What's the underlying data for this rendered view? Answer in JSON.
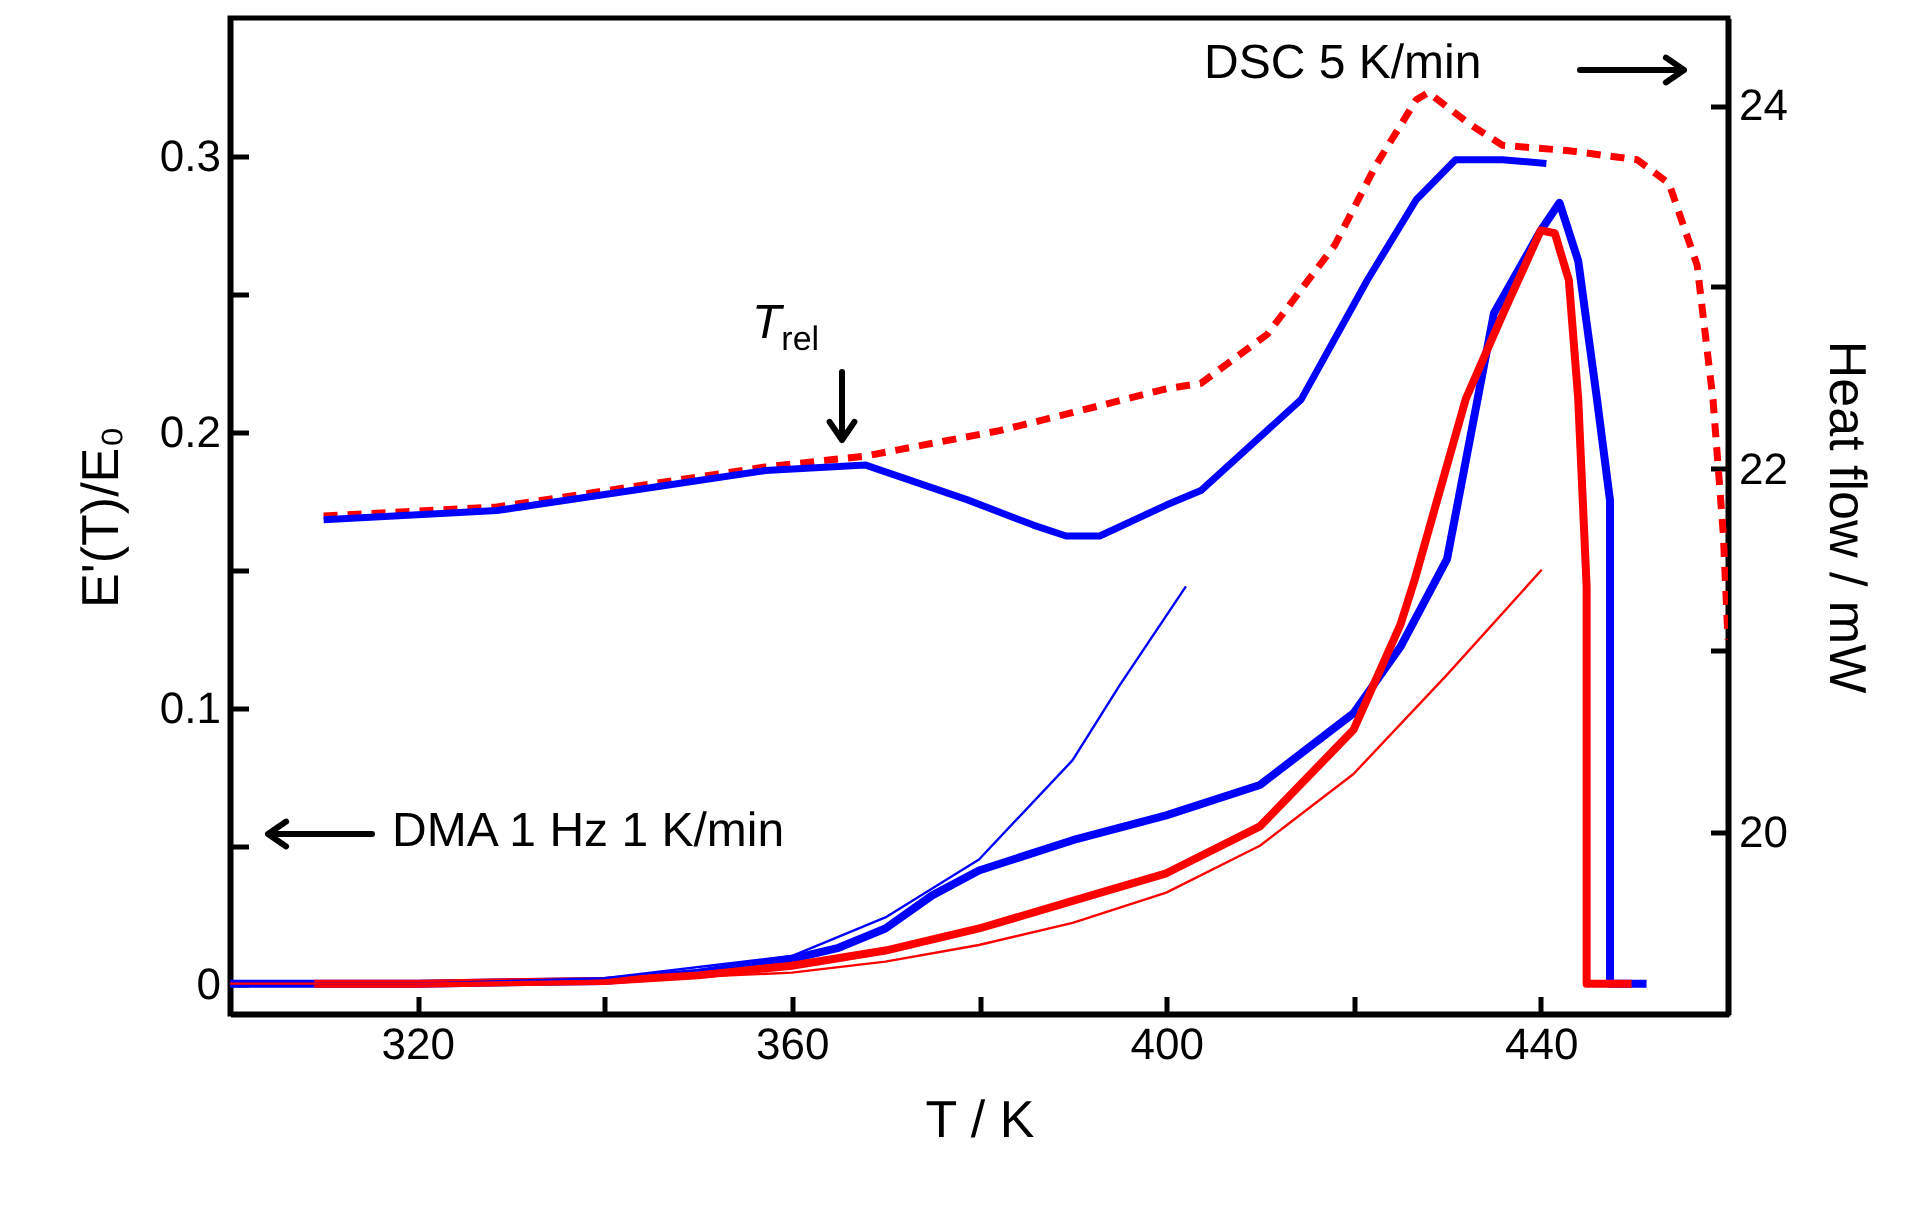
{
  "chart_data": {
    "type": "line",
    "xlabel": "T / K",
    "ylabel": "E'(T)/E₀",
    "y2label": "Heat flow / mW",
    "xlim": [
      300,
      460
    ],
    "xticks": [
      320,
      {
        "value": 340,
        "label": null
      },
      360,
      {
        "value": 380,
        "label": null
      },
      400,
      {
        "value": 420,
        "label": null
      },
      440
    ],
    "ylim": [
      -0.011,
      0.35
    ],
    "yticks": [
      0,
      {
        "value": 0.05,
        "label": null
      },
      0.1,
      {
        "value": 0.15,
        "label": null
      },
      0.2,
      {
        "value": 0.25,
        "label": null
      },
      0.3
    ],
    "y2lim": [
      19,
      24.48
    ],
    "y2ticks": [
      20,
      {
        "value": 21,
        "label": null
      },
      22,
      {
        "value": 23,
        "label": null
      },
      24
    ],
    "grid": false,
    "annotations": [
      "T$_{rel}$",
      "DSC 5 K/min",
      "DMA 1 Hz 1 K/min"
    ],
    "series": [
      {
        "color": "#ff0000",
        "axis": "y2",
        "line_style": "dashed",
        "x": [
          310,
          328.5,
          342.9,
          357.2,
          367.9,
          382.2,
          389.3,
          400,
          403.7,
          410.8,
          418,
          422.4,
          426.7,
          428,
          432.3,
          435.9,
          443,
          450.3,
          453.7,
          456.7,
          458.4,
          459.5,
          460
        ],
        "values": [
          21.74,
          21.79,
          21.9,
          22.01,
          22.07,
          22.21,
          22.3,
          22.44,
          22.47,
          22.74,
          23.23,
          23.67,
          24.03,
          24.07,
          23.9,
          23.78,
          23.75,
          23.7,
          23.57,
          23.12,
          22.38,
          21.64,
          21.06
        ]
      },
      {
        "color": "#0000ff",
        "axis": "y2",
        "x": [
          310,
          328.5,
          342.9,
          357.2,
          367.9,
          378.7,
          385.8,
          389.3,
          392.9,
          400,
          403.7,
          414.4,
          421.5,
          426.7,
          430.9,
          435.9,
          440.6
        ],
        "values": [
          21.72,
          21.77,
          21.88,
          21.99,
          22.02,
          21.83,
          21.69,
          21.63,
          21.63,
          21.8,
          21.88,
          22.38,
          23.04,
          23.48,
          23.7,
          23.7,
          23.68
        ]
      },
      {
        "color": "#0000ff",
        "x": [
          300,
          320,
          340,
          350,
          360,
          365,
          370,
          375,
          380,
          390,
          400,
          410,
          420,
          425,
          430,
          435,
          440,
          442,
          444,
          446,
          447.4,
          447.4,
          451.3
        ],
        "values": [
          0,
          0,
          0.001,
          0.004,
          0.009,
          0.013,
          0.02,
          0.032,
          0.041,
          0.052,
          0.061,
          0.072,
          0.098,
          0.122,
          0.154,
          0.243,
          0.273,
          0.283,
          0.262,
          0.212,
          0.175,
          0,
          0
        ]
      },
      {
        "color": "#ff0000",
        "x": [
          309,
          320,
          340,
          350,
          360,
          370,
          380,
          390,
          400,
          410,
          420,
          425,
          426.5,
          432,
          436,
          440,
          441.5,
          443,
          444,
          444.9,
          444.9,
          449.7
        ],
        "values": [
          0,
          0,
          0.001,
          0.003,
          0.0065,
          0.012,
          0.02,
          0.03,
          0.04,
          0.057,
          0.092,
          0.13,
          0.146,
          0.212,
          0.243,
          0.273,
          0.272,
          0.255,
          0.212,
          0.144,
          0,
          0
        ]
      },
      {
        "color": "#0000ff",
        "x": [
          300,
          320,
          340,
          360,
          370,
          380,
          390,
          395,
          402.1
        ],
        "values": [
          0,
          0,
          0.002,
          0.01,
          0.024,
          0.045,
          0.081,
          0.108,
          0.144
        ]
      },
      {
        "color": "#ff0000",
        "x": [
          300,
          320,
          340,
          360,
          370,
          380,
          390,
          400,
          410,
          420,
          430,
          440.1
        ],
        "values": [
          0,
          0,
          0.001,
          0.004,
          0.008,
          0.014,
          0.022,
          0.033,
          0.05,
          0.076,
          0.112,
          0.15
        ]
      }
    ]
  }
}
